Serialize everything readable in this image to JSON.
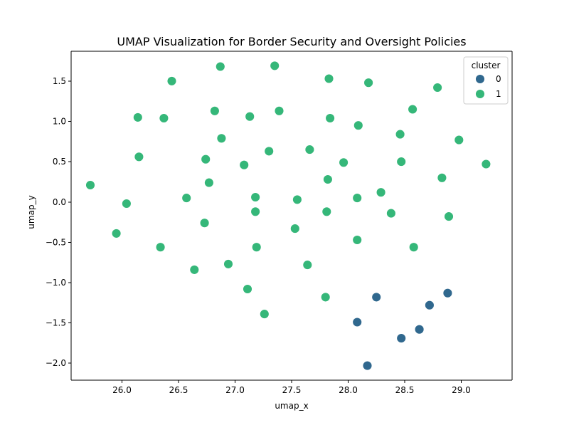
{
  "chart_data": {
    "type": "scatter",
    "title": "UMAP Visualization for Border Security and Oversight Policies",
    "xlabel": "umap_x",
    "ylabel": "umap_y",
    "xlim": [
      25.55,
      29.45
    ],
    "ylim": [
      -2.21,
      1.87
    ],
    "xticks": [
      26.0,
      26.5,
      27.0,
      27.5,
      28.0,
      28.5,
      29.0
    ],
    "xtick_labels": [
      "26.0",
      "26.5",
      "27.0",
      "27.5",
      "28.0",
      "28.5",
      "29.0"
    ],
    "yticks": [
      -2.0,
      -1.5,
      -1.0,
      -0.5,
      0.0,
      0.5,
      1.0,
      1.5
    ],
    "ytick_labels": [
      "−2.0",
      "−1.5",
      "−1.0",
      "−0.5",
      "0.0",
      "0.5",
      "1.0",
      "1.5"
    ],
    "grid": false,
    "legend": {
      "title": "cluster",
      "placement": "top-right",
      "entries": [
        "0",
        "1"
      ]
    },
    "colors": {
      "0": "#30688e",
      "1": "#35b779"
    },
    "series": [
      {
        "name": "0",
        "points": [
          [
            28.25,
            -1.18
          ],
          [
            28.88,
            -1.13
          ],
          [
            28.72,
            -1.28
          ],
          [
            28.08,
            -1.49
          ],
          [
            28.63,
            -1.58
          ],
          [
            28.47,
            -1.69
          ],
          [
            28.17,
            -2.03
          ]
        ]
      },
      {
        "name": "1",
        "points": [
          [
            26.87,
            1.68
          ],
          [
            27.35,
            1.69
          ],
          [
            26.44,
            1.5
          ],
          [
            27.83,
            1.53
          ],
          [
            28.18,
            1.48
          ],
          [
            28.79,
            1.42
          ],
          [
            26.14,
            1.05
          ],
          [
            26.37,
            1.04
          ],
          [
            26.82,
            1.13
          ],
          [
            27.13,
            1.06
          ],
          [
            27.39,
            1.13
          ],
          [
            27.84,
            1.04
          ],
          [
            28.09,
            0.95
          ],
          [
            28.57,
            1.15
          ],
          [
            28.46,
            0.84
          ],
          [
            28.98,
            0.77
          ],
          [
            26.88,
            0.79
          ],
          [
            26.15,
            0.56
          ],
          [
            26.74,
            0.53
          ],
          [
            27.08,
            0.46
          ],
          [
            27.3,
            0.63
          ],
          [
            27.66,
            0.65
          ],
          [
            27.96,
            0.49
          ],
          [
            28.47,
            0.5
          ],
          [
            29.22,
            0.47
          ],
          [
            25.72,
            0.21
          ],
          [
            26.57,
            0.05
          ],
          [
            26.77,
            0.24
          ],
          [
            27.18,
            0.06
          ],
          [
            27.55,
            0.03
          ],
          [
            27.82,
            0.28
          ],
          [
            28.08,
            0.05
          ],
          [
            28.29,
            0.12
          ],
          [
            28.83,
            0.3
          ],
          [
            26.04,
            -0.02
          ],
          [
            27.18,
            -0.12
          ],
          [
            27.81,
            -0.12
          ],
          [
            28.38,
            -0.14
          ],
          [
            28.89,
            -0.18
          ],
          [
            25.95,
            -0.39
          ],
          [
            26.73,
            -0.26
          ],
          [
            27.53,
            -0.33
          ],
          [
            28.08,
            -0.47
          ],
          [
            26.34,
            -0.56
          ],
          [
            27.19,
            -0.56
          ],
          [
            28.58,
            -0.56
          ],
          [
            26.64,
            -0.84
          ],
          [
            26.94,
            -0.77
          ],
          [
            27.64,
            -0.78
          ],
          [
            27.11,
            -1.08
          ],
          [
            27.8,
            -1.18
          ],
          [
            27.26,
            -1.39
          ]
        ]
      }
    ]
  }
}
